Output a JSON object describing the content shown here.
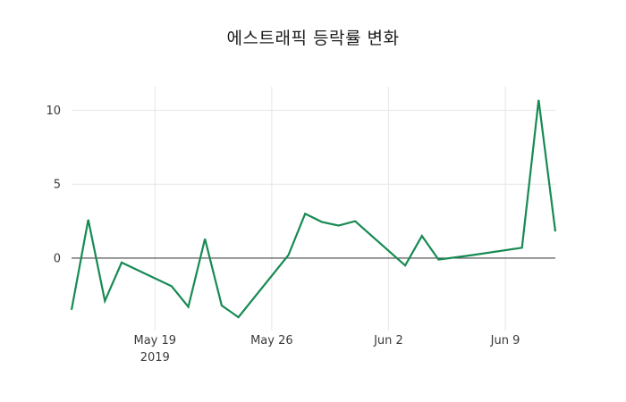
{
  "title": {
    "text": "에스트래픽 등락률 변화"
  },
  "chart_data": {
    "type": "line",
    "title": "에스트래픽 등락률 변화",
    "x": [
      "2019-05-14",
      "2019-05-15",
      "2019-05-16",
      "2019-05-17",
      "2019-05-20",
      "2019-05-21",
      "2019-05-22",
      "2019-05-23",
      "2019-05-24",
      "2019-05-27",
      "2019-05-28",
      "2019-05-29",
      "2019-05-30",
      "2019-05-31",
      "2019-06-03",
      "2019-06-04",
      "2019-06-05",
      "2019-06-07",
      "2019-06-10",
      "2019-06-11",
      "2019-06-12"
    ],
    "values": [
      -3.5,
      2.6,
      -2.9,
      -0.3,
      -1.9,
      -3.3,
      1.3,
      -3.2,
      -4.0,
      0.2,
      3.0,
      2.45,
      2.2,
      2.5,
      -0.5,
      1.5,
      -0.1,
      0.2,
      0.7,
      10.7,
      1.8
    ],
    "x_range": [
      "2019-05-14",
      "2019-06-12"
    ],
    "y_range": [
      -4.9,
      11.6
    ],
    "x_ticks": [
      {
        "date": "2019-05-19",
        "label": "May 19",
        "sublabel": "2019"
      },
      {
        "date": "2019-05-26",
        "label": "May 26",
        "sublabel": ""
      },
      {
        "date": "2019-06-02",
        "label": "Jun 2",
        "sublabel": ""
      },
      {
        "date": "2019-06-09",
        "label": "Jun 9",
        "sublabel": ""
      }
    ],
    "y_ticks": [
      {
        "value": 0,
        "label": "0"
      },
      {
        "value": 5,
        "label": "5"
      },
      {
        "value": 10,
        "label": "10"
      }
    ],
    "line_color": "#178a53",
    "grid": true,
    "zeroline": true,
    "legend_position": "none"
  },
  "colors": {
    "line": "#178a53",
    "zero_line": "#444444",
    "gridline": "#e6e6e6",
    "tick_text": "#3a3a3a",
    "title_text": "#1c1c1c"
  }
}
